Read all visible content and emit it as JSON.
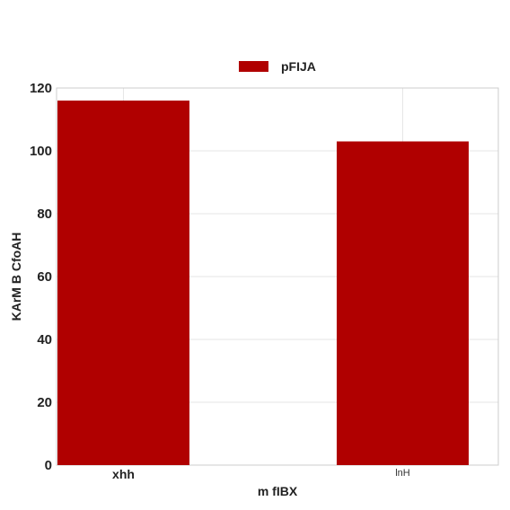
{
  "chart_data": {
    "type": "bar",
    "categories": [
      "xhh",
      "lnH"
    ],
    "series": [
      {
        "name": "pFIJA",
        "values": [
          116,
          103
        ],
        "color": "#b00000"
      }
    ],
    "xlabel": "m fIBX",
    "ylabel": "KArM B CfoAH",
    "ylim": [
      0,
      120
    ],
    "yticks": [
      0,
      20,
      40,
      60,
      80,
      100,
      120
    ],
    "grid": true,
    "legend_position": "top-center"
  }
}
